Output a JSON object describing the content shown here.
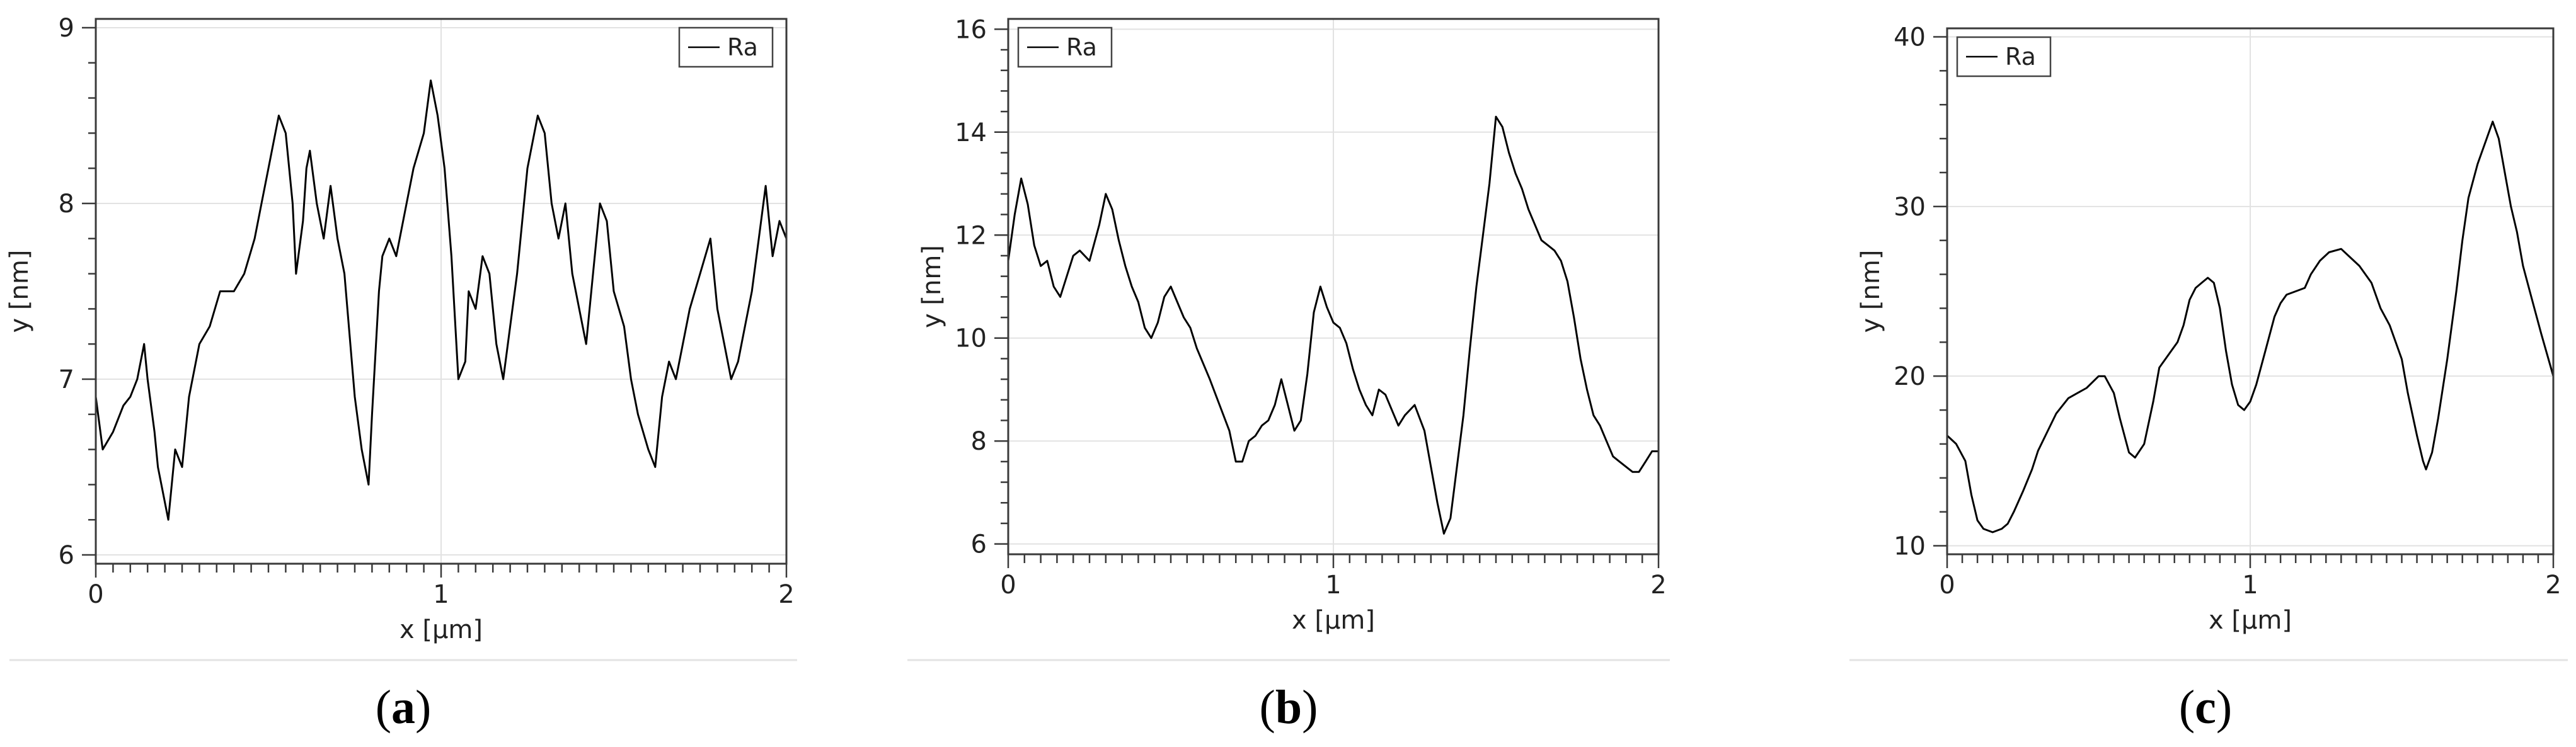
{
  "chart_data": [
    {
      "type": "line",
      "xlabel": "x [µm]",
      "ylabel": "y [nm]",
      "xlim": [
        0,
        2
      ],
      "ylim": [
        5.95,
        9.05
      ],
      "xticks": [
        0,
        1,
        2
      ],
      "yticks": [
        6,
        7,
        8,
        9
      ],
      "legend": "top-right",
      "grid": true,
      "caption_letter": "a",
      "series": [
        {
          "name": "Ra",
          "x": [
            0.0,
            0.02,
            0.05,
            0.08,
            0.1,
            0.12,
            0.14,
            0.15,
            0.17,
            0.18,
            0.2,
            0.21,
            0.23,
            0.25,
            0.27,
            0.3,
            0.33,
            0.36,
            0.4,
            0.43,
            0.46,
            0.48,
            0.5,
            0.53,
            0.55,
            0.57,
            0.58,
            0.6,
            0.61,
            0.62,
            0.64,
            0.66,
            0.68,
            0.7,
            0.72,
            0.75,
            0.77,
            0.79,
            0.8,
            0.82,
            0.83,
            0.85,
            0.87,
            0.9,
            0.92,
            0.95,
            0.97,
            0.99,
            1.01,
            1.03,
            1.05,
            1.07,
            1.08,
            1.1,
            1.12,
            1.14,
            1.16,
            1.18,
            1.2,
            1.22,
            1.25,
            1.28,
            1.3,
            1.32,
            1.34,
            1.36,
            1.38,
            1.4,
            1.42,
            1.44,
            1.46,
            1.48,
            1.5,
            1.53,
            1.55,
            1.57,
            1.6,
            1.62,
            1.64,
            1.66,
            1.68,
            1.7,
            1.72,
            1.75,
            1.78,
            1.8,
            1.82,
            1.84,
            1.86,
            1.88,
            1.9,
            1.92,
            1.94,
            1.96,
            1.98,
            2.0
          ],
          "values": [
            6.9,
            6.6,
            6.7,
            6.85,
            6.9,
            7.0,
            7.2,
            7.0,
            6.7,
            6.5,
            6.3,
            6.2,
            6.6,
            6.5,
            6.9,
            7.2,
            7.3,
            7.5,
            7.5,
            7.6,
            7.8,
            8.0,
            8.2,
            8.5,
            8.4,
            8.0,
            7.6,
            7.9,
            8.2,
            8.3,
            8.0,
            7.8,
            8.1,
            7.8,
            7.6,
            6.9,
            6.6,
            6.4,
            6.8,
            7.5,
            7.7,
            7.8,
            7.7,
            8.0,
            8.2,
            8.4,
            8.7,
            8.5,
            8.2,
            7.7,
            7.0,
            7.1,
            7.5,
            7.4,
            7.7,
            7.6,
            7.2,
            7.0,
            7.3,
            7.6,
            8.2,
            8.5,
            8.4,
            8.0,
            7.8,
            8.0,
            7.6,
            7.4,
            7.2,
            7.6,
            8.0,
            7.9,
            7.5,
            7.3,
            7.0,
            6.8,
            6.6,
            6.5,
            6.9,
            7.1,
            7.0,
            7.2,
            7.4,
            7.6,
            7.8,
            7.4,
            7.2,
            7.0,
            7.1,
            7.3,
            7.5,
            7.8,
            8.1,
            7.7,
            7.9,
            7.8
          ]
        }
      ]
    },
    {
      "type": "line",
      "xlabel": "x [µm]",
      "ylabel": "y [nm]",
      "xlim": [
        0,
        2
      ],
      "ylim": [
        5.8,
        16.2
      ],
      "xticks": [
        0,
        1,
        2
      ],
      "yticks": [
        6,
        8,
        10,
        12,
        14,
        16
      ],
      "legend": "top-left",
      "grid": true,
      "caption_letter": "b",
      "series": [
        {
          "name": "Ra",
          "x": [
            0.0,
            0.02,
            0.04,
            0.06,
            0.08,
            0.1,
            0.12,
            0.14,
            0.16,
            0.18,
            0.2,
            0.22,
            0.25,
            0.28,
            0.3,
            0.32,
            0.34,
            0.36,
            0.38,
            0.4,
            0.42,
            0.44,
            0.46,
            0.48,
            0.5,
            0.52,
            0.54,
            0.56,
            0.58,
            0.6,
            0.62,
            0.65,
            0.68,
            0.7,
            0.72,
            0.74,
            0.76,
            0.78,
            0.8,
            0.82,
            0.84,
            0.86,
            0.88,
            0.9,
            0.92,
            0.94,
            0.96,
            0.98,
            1.0,
            1.02,
            1.04,
            1.06,
            1.08,
            1.1,
            1.12,
            1.14,
            1.16,
            1.18,
            1.2,
            1.22,
            1.25,
            1.28,
            1.3,
            1.32,
            1.34,
            1.36,
            1.38,
            1.4,
            1.42,
            1.44,
            1.46,
            1.48,
            1.5,
            1.52,
            1.54,
            1.56,
            1.58,
            1.6,
            1.62,
            1.64,
            1.66,
            1.68,
            1.7,
            1.72,
            1.74,
            1.76,
            1.78,
            1.8,
            1.82,
            1.84,
            1.86,
            1.88,
            1.9,
            1.92,
            1.94,
            1.96,
            1.98,
            2.0
          ],
          "values": [
            11.5,
            12.4,
            13.1,
            12.6,
            11.8,
            11.4,
            11.5,
            11.0,
            10.8,
            11.2,
            11.6,
            11.7,
            11.5,
            12.2,
            12.8,
            12.5,
            11.9,
            11.4,
            11.0,
            10.7,
            10.2,
            10.0,
            10.3,
            10.8,
            11.0,
            10.7,
            10.4,
            10.2,
            9.8,
            9.5,
            9.2,
            8.7,
            8.2,
            7.6,
            7.6,
            8.0,
            8.1,
            8.3,
            8.4,
            8.7,
            9.2,
            8.7,
            8.2,
            8.4,
            9.3,
            10.5,
            11.0,
            10.6,
            10.3,
            10.2,
            9.9,
            9.4,
            9.0,
            8.7,
            8.5,
            9.0,
            8.9,
            8.6,
            8.3,
            8.5,
            8.7,
            8.2,
            7.5,
            6.8,
            6.2,
            6.5,
            7.5,
            8.5,
            9.8,
            11.0,
            12.0,
            13.0,
            14.3,
            14.1,
            13.6,
            13.2,
            12.9,
            12.5,
            12.2,
            11.9,
            11.8,
            11.7,
            11.5,
            11.1,
            10.4,
            9.6,
            9.0,
            8.5,
            8.3,
            8.0,
            7.7,
            7.6,
            7.5,
            7.4,
            7.4,
            7.6,
            7.8,
            7.8
          ]
        }
      ]
    },
    {
      "type": "line",
      "xlabel": "x [µm]",
      "ylabel": "y [nm]",
      "xlim": [
        0,
        2
      ],
      "ylim": [
        9.5,
        40.5
      ],
      "xticks": [
        0,
        1,
        2
      ],
      "yticks": [
        10,
        20,
        30,
        40
      ],
      "legend": "top-left",
      "grid": true,
      "caption_letter": "c",
      "series": [
        {
          "name": "Ra",
          "x": [
            0.0,
            0.03,
            0.06,
            0.08,
            0.1,
            0.12,
            0.15,
            0.18,
            0.2,
            0.22,
            0.25,
            0.28,
            0.3,
            0.33,
            0.36,
            0.4,
            0.43,
            0.46,
            0.5,
            0.52,
            0.55,
            0.57,
            0.6,
            0.62,
            0.65,
            0.68,
            0.7,
            0.72,
            0.74,
            0.76,
            0.78,
            0.8,
            0.82,
            0.84,
            0.86,
            0.88,
            0.9,
            0.92,
            0.94,
            0.96,
            0.98,
            1.0,
            1.02,
            1.05,
            1.08,
            1.1,
            1.12,
            1.15,
            1.18,
            1.2,
            1.23,
            1.26,
            1.3,
            1.33,
            1.36,
            1.4,
            1.43,
            1.46,
            1.5,
            1.52,
            1.55,
            1.57,
            1.58,
            1.6,
            1.62,
            1.65,
            1.68,
            1.7,
            1.72,
            1.75,
            1.78,
            1.8,
            1.82,
            1.84,
            1.86,
            1.88,
            1.9,
            1.93,
            1.96,
            2.0
          ],
          "values": [
            16.5,
            16.0,
            15.0,
            13.0,
            11.5,
            11.0,
            10.8,
            11.0,
            11.3,
            12.0,
            13.2,
            14.5,
            15.6,
            16.7,
            17.8,
            18.7,
            19.0,
            19.3,
            20.0,
            20.0,
            19.0,
            17.5,
            15.5,
            15.2,
            16.0,
            18.5,
            20.5,
            21.0,
            21.5,
            22.0,
            23.0,
            24.5,
            25.2,
            25.5,
            25.8,
            25.5,
            24.0,
            21.5,
            19.5,
            18.3,
            18.0,
            18.5,
            19.5,
            21.5,
            23.5,
            24.3,
            24.8,
            25.0,
            25.2,
            26.0,
            26.8,
            27.3,
            27.5,
            27.0,
            26.5,
            25.5,
            24.0,
            23.0,
            21.0,
            19.0,
            16.5,
            15.0,
            14.5,
            15.5,
            17.5,
            21.0,
            25.0,
            28.0,
            30.5,
            32.5,
            34.0,
            35.0,
            34.0,
            32.0,
            30.0,
            28.5,
            26.5,
            24.5,
            22.5,
            20.0
          ]
        }
      ]
    }
  ]
}
